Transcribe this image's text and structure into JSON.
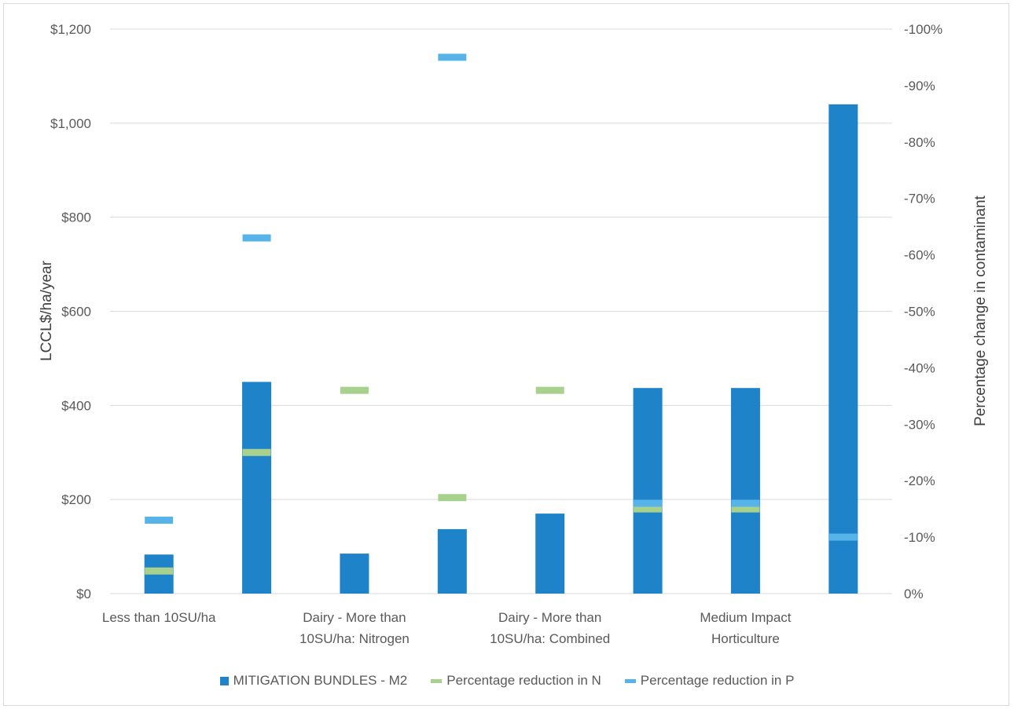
{
  "chart_data": {
    "type": "bar",
    "categories": [
      "Less than 10SU/ha",
      "",
      "Dairy - More than 10SU/ha: Nitrogen",
      "",
      "Dairy - More than 10SU/ha: Combined",
      "",
      "Medium Impact Horticulture",
      ""
    ],
    "category_label_lines": [
      [
        "Less than 10SU/ha"
      ],
      [],
      [
        "Dairy - More than",
        "10SU/ha: Nitrogen"
      ],
      [],
      [
        "Dairy - More than",
        "10SU/ha: Combined"
      ],
      [],
      [
        "Medium Impact",
        "Horticulture"
      ],
      []
    ],
    "series": [
      {
        "name": "MITIGATION BUNDLES - M2",
        "type": "bar",
        "axis": "left",
        "color": "#1f83c9",
        "values": [
          83,
          450,
          85,
          137,
          170,
          437,
          437,
          1040
        ]
      },
      {
        "name": "Percentage reduction in N",
        "type": "marker",
        "axis": "right",
        "color": "#a9d18e",
        "values": [
          -4,
          -25,
          -36,
          -17,
          -36,
          -15,
          -15,
          null
        ]
      },
      {
        "name": "Percentage reduction in P",
        "type": "marker",
        "axis": "right",
        "color": "#56b4e9",
        "values": [
          -13,
          -63,
          null,
          -95,
          null,
          -16,
          -16,
          -10
        ]
      }
    ],
    "ylabel": "LCCL$/ha/year",
    "y2label": "Percentage change in contaminant",
    "ylim": [
      0,
      1200
    ],
    "y2lim": [
      0,
      -100
    ],
    "yticks": [
      "$0",
      "$200",
      "$400",
      "$600",
      "$800",
      "$1,000",
      "$1,200"
    ],
    "y2ticks": [
      "0%",
      "-10%",
      "-20%",
      "-30%",
      "-40%",
      "-50%",
      "-60%",
      "-70%",
      "-80%",
      "-90%",
      "-100%"
    ],
    "grid": true,
    "legend_position": "bottom"
  }
}
